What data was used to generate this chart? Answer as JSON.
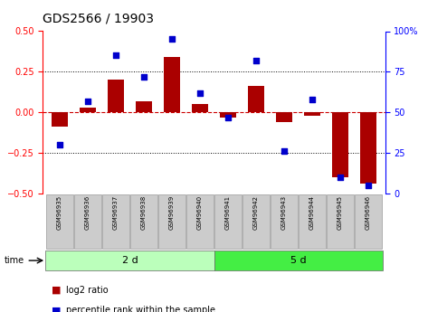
{
  "title": "GDS2566 / 19903",
  "samples": [
    "GSM96935",
    "GSM96936",
    "GSM96937",
    "GSM96938",
    "GSM96939",
    "GSM96940",
    "GSM96941",
    "GSM96942",
    "GSM96943",
    "GSM96944",
    "GSM96945",
    "GSM96946"
  ],
  "log2_ratio": [
    -0.09,
    0.03,
    0.2,
    0.07,
    0.34,
    0.05,
    -0.03,
    0.16,
    -0.06,
    -0.02,
    -0.4,
    -0.44
  ],
  "pct_rank": [
    30,
    57,
    85,
    72,
    95,
    62,
    47,
    82,
    26,
    58,
    10,
    5
  ],
  "groups": [
    {
      "label": "2 d",
      "start": 0,
      "end": 6,
      "color": "#bbffbb"
    },
    {
      "label": "5 d",
      "start": 6,
      "end": 12,
      "color": "#44ee44"
    }
  ],
  "bar_color": "#aa0000",
  "dot_color": "#0000cc",
  "ylim_left": [
    -0.5,
    0.5
  ],
  "ylim_right": [
    0,
    100
  ],
  "yticks_left": [
    -0.5,
    -0.25,
    0,
    0.25,
    0.5
  ],
  "yticks_right": [
    0,
    25,
    50,
    75,
    100
  ],
  "hline_color": "#cc0000",
  "dotted_color": "#000000",
  "bg_color": "#ffffff",
  "sample_box_color": "#cccccc",
  "bar_width": 0.6,
  "title_fontsize": 10
}
